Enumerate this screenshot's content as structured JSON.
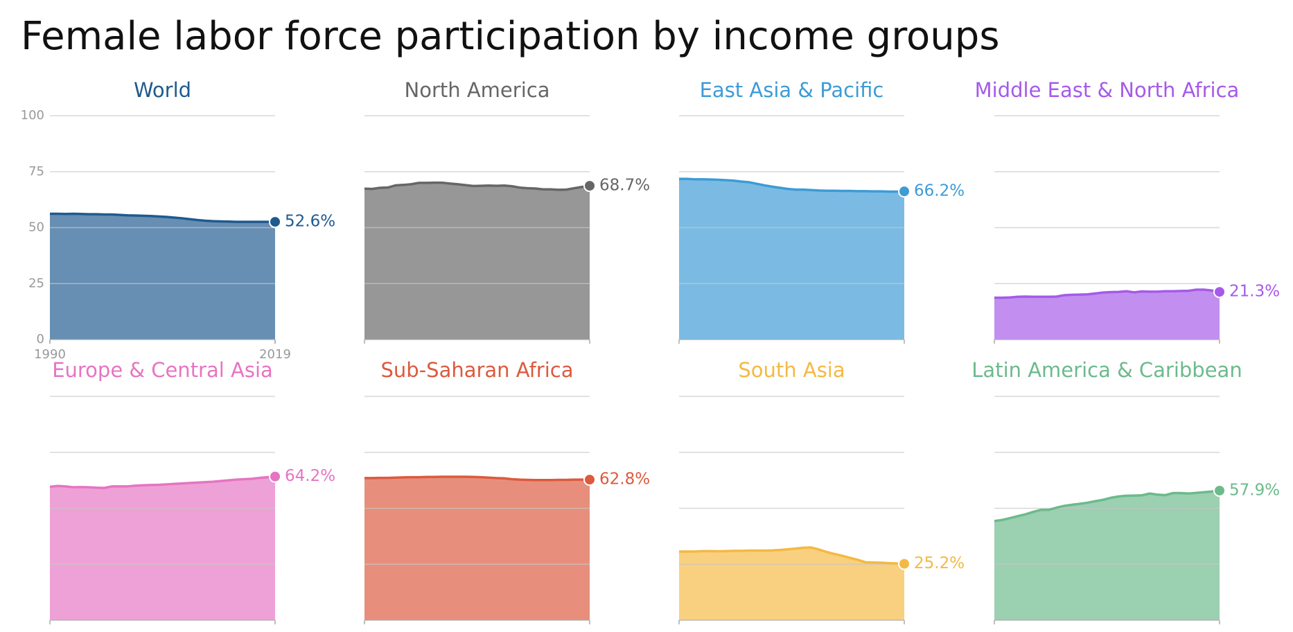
{
  "title": "Female labor force participation by income groups",
  "chart_data": [
    {
      "type": "area",
      "title": "World",
      "color": "#1f5a8f",
      "show_tick_labels": true,
      "x": [
        1990,
        1991,
        1992,
        1993,
        1994,
        1995,
        1996,
        1997,
        1998,
        1999,
        2000,
        2001,
        2002,
        2003,
        2004,
        2005,
        2006,
        2007,
        2008,
        2009,
        2010,
        2011,
        2012,
        2013,
        2014,
        2015,
        2016,
        2017,
        2018,
        2019
      ],
      "values": [
        56.2,
        56.2,
        56.1,
        56.2,
        56.1,
        56.0,
        56.0,
        55.9,
        55.9,
        55.7,
        55.5,
        55.4,
        55.3,
        55.2,
        55.0,
        54.8,
        54.5,
        54.2,
        53.8,
        53.4,
        53.1,
        52.9,
        52.8,
        52.7,
        52.6,
        52.6,
        52.6,
        52.6,
        52.6,
        52.6
      ],
      "value_labels": [
        null,
        null,
        null,
        null,
        null,
        null,
        null,
        null,
        null,
        null,
        null,
        null,
        null,
        null,
        null,
        null,
        null,
        null,
        null,
        null,
        null,
        null,
        null,
        null,
        null,
        null,
        null,
        null,
        null,
        "52.6%"
      ],
      "xlim": [
        1990,
        2019
      ],
      "xticks": [
        1990,
        2019
      ],
      "ylim": [
        0,
        100
      ],
      "yticks": [
        0,
        25,
        50,
        75,
        100
      ]
    },
    {
      "type": "area",
      "title": "North America",
      "color": "#666666",
      "x": [
        1990,
        1991,
        1992,
        1993,
        1994,
        1995,
        1996,
        1997,
        1998,
        1999,
        2000,
        2001,
        2002,
        2003,
        2004,
        2005,
        2006,
        2007,
        2008,
        2009,
        2010,
        2011,
        2012,
        2013,
        2014,
        2015,
        2016,
        2017,
        2018,
        2019
      ],
      "values": [
        67.4,
        67.3,
        67.8,
        67.9,
        68.9,
        69.1,
        69.4,
        70.0,
        70.0,
        70.1,
        70.1,
        69.7,
        69.4,
        69.0,
        68.6,
        68.7,
        68.8,
        68.7,
        68.8,
        68.5,
        67.9,
        67.6,
        67.5,
        67.1,
        67.1,
        66.9,
        67.0,
        67.6,
        68.2,
        68.7
      ],
      "value_labels": [
        null,
        null,
        null,
        null,
        null,
        null,
        null,
        null,
        null,
        null,
        null,
        null,
        null,
        null,
        null,
        null,
        null,
        null,
        null,
        null,
        null,
        null,
        null,
        null,
        null,
        null,
        null,
        null,
        null,
        "68.7%"
      ],
      "xlim": [
        1990,
        2019
      ],
      "ylim": [
        0,
        100
      ],
      "yticks": [
        0,
        25,
        50,
        75,
        100
      ]
    },
    {
      "type": "area",
      "title": "East Asia & Pacific",
      "color": "#3d9bd6",
      "x": [
        1990,
        1991,
        1992,
        1993,
        1994,
        1995,
        1996,
        1997,
        1998,
        1999,
        2000,
        2001,
        2002,
        2003,
        2004,
        2005,
        2006,
        2007,
        2008,
        2009,
        2010,
        2011,
        2012,
        2013,
        2014,
        2015,
        2016,
        2017,
        2018,
        2019
      ],
      "values": [
        71.8,
        71.8,
        71.6,
        71.6,
        71.5,
        71.4,
        71.2,
        71.0,
        70.6,
        70.3,
        69.6,
        68.9,
        68.3,
        67.8,
        67.3,
        67.0,
        67.0,
        66.8,
        66.6,
        66.5,
        66.5,
        66.4,
        66.4,
        66.3,
        66.3,
        66.2,
        66.2,
        66.1,
        66.1,
        66.2
      ],
      "value_labels": [
        null,
        null,
        null,
        null,
        null,
        null,
        null,
        null,
        null,
        null,
        null,
        null,
        null,
        null,
        null,
        null,
        null,
        null,
        null,
        null,
        null,
        null,
        null,
        null,
        null,
        null,
        null,
        null,
        null,
        "66.2%"
      ],
      "xlim": [
        1990,
        2019
      ],
      "ylim": [
        0,
        100
      ],
      "yticks": [
        0,
        25,
        50,
        75,
        100
      ]
    },
    {
      "type": "area",
      "title": "Middle East & North Africa",
      "color": "#a55ae9",
      "x": [
        1990,
        1991,
        1992,
        1993,
        1994,
        1995,
        1996,
        1997,
        1998,
        1999,
        2000,
        2001,
        2002,
        2003,
        2004,
        2005,
        2006,
        2007,
        2008,
        2009,
        2010,
        2011,
        2012,
        2013,
        2014,
        2015,
        2016,
        2017,
        2018,
        2019
      ],
      "values": [
        18.7,
        18.7,
        18.8,
        19.1,
        19.2,
        19.1,
        19.1,
        19.1,
        19.2,
        19.8,
        20.0,
        20.1,
        20.2,
        20.6,
        21.0,
        21.2,
        21.3,
        21.6,
        21.1,
        21.5,
        21.4,
        21.4,
        21.6,
        21.6,
        21.7,
        21.8,
        22.3,
        22.3,
        21.9,
        21.3
      ],
      "value_labels": [
        null,
        null,
        null,
        null,
        null,
        null,
        null,
        null,
        null,
        null,
        null,
        null,
        null,
        null,
        null,
        null,
        null,
        null,
        null,
        null,
        null,
        null,
        null,
        null,
        null,
        null,
        null,
        null,
        null,
        "21.3%"
      ],
      "xlim": [
        1990,
        2019
      ],
      "ylim": [
        0,
        100
      ],
      "yticks": [
        0,
        25,
        50,
        75,
        100
      ]
    },
    {
      "type": "area",
      "title": "Europe & Central Asia",
      "color": "#e674c3",
      "x": [
        1990,
        1991,
        1992,
        1993,
        1994,
        1995,
        1996,
        1997,
        1998,
        1999,
        2000,
        2001,
        2002,
        2003,
        2004,
        2005,
        2006,
        2007,
        2008,
        2009,
        2010,
        2011,
        2012,
        2013,
        2014,
        2015,
        2016,
        2017,
        2018,
        2019
      ],
      "values": [
        59.6,
        60.0,
        59.8,
        59.4,
        59.5,
        59.4,
        59.2,
        59.1,
        59.8,
        59.8,
        59.8,
        60.1,
        60.3,
        60.4,
        60.5,
        60.7,
        60.9,
        61.1,
        61.3,
        61.5,
        61.7,
        61.9,
        62.2,
        62.5,
        62.8,
        63.0,
        63.2,
        63.6,
        63.9,
        64.2
      ],
      "value_labels": [
        null,
        null,
        null,
        null,
        null,
        null,
        null,
        null,
        null,
        null,
        null,
        null,
        null,
        null,
        null,
        null,
        null,
        null,
        null,
        null,
        null,
        null,
        null,
        null,
        null,
        null,
        null,
        null,
        null,
        "64.2%"
      ],
      "xlim": [
        1990,
        2019
      ],
      "ylim": [
        0,
        100
      ],
      "yticks": [
        0,
        25,
        50,
        75,
        100
      ]
    },
    {
      "type": "area",
      "title": "Sub-Saharan Africa",
      "color": "#dc5a3e",
      "x": [
        1990,
        1991,
        1992,
        1993,
        1994,
        1995,
        1996,
        1997,
        1998,
        1999,
        2000,
        2001,
        2002,
        2003,
        2004,
        2005,
        2006,
        2007,
        2008,
        2009,
        2010,
        2011,
        2012,
        2013,
        2014,
        2015,
        2016,
        2017,
        2018,
        2019
      ],
      "values": [
        63.5,
        63.5,
        63.6,
        63.6,
        63.7,
        63.8,
        63.9,
        63.9,
        64.0,
        64.0,
        64.1,
        64.1,
        64.1,
        64.1,
        64.0,
        63.9,
        63.7,
        63.5,
        63.4,
        63.0,
        62.8,
        62.7,
        62.6,
        62.6,
        62.6,
        62.7,
        62.7,
        62.8,
        62.8,
        62.8
      ],
      "value_labels": [
        null,
        null,
        null,
        null,
        null,
        null,
        null,
        null,
        null,
        null,
        null,
        null,
        null,
        null,
        null,
        null,
        null,
        null,
        null,
        null,
        null,
        null,
        null,
        null,
        null,
        null,
        null,
        null,
        null,
        "62.8%"
      ],
      "xlim": [
        1990,
        2019
      ],
      "ylim": [
        0,
        100
      ],
      "yticks": [
        0,
        25,
        50,
        75,
        100
      ]
    },
    {
      "type": "area",
      "title": "South Asia",
      "color": "#f4b942",
      "x": [
        1990,
        1991,
        1992,
        1993,
        1994,
        1995,
        1996,
        1997,
        1998,
        1999,
        2000,
        2001,
        2002,
        2003,
        2004,
        2005,
        2006,
        2007,
        2008,
        2009,
        2010,
        2011,
        2012,
        2013,
        2014,
        2015,
        2016,
        2017,
        2018,
        2019
      ],
      "values": [
        30.7,
        30.7,
        30.7,
        30.9,
        30.9,
        30.8,
        30.9,
        31.0,
        31.0,
        31.1,
        31.1,
        31.1,
        31.2,
        31.4,
        31.7,
        32.0,
        32.4,
        32.5,
        31.6,
        30.5,
        29.6,
        28.8,
        27.9,
        27.0,
        25.9,
        25.8,
        25.7,
        25.5,
        25.4,
        25.2
      ],
      "value_labels": [
        null,
        null,
        null,
        null,
        null,
        null,
        null,
        null,
        null,
        null,
        null,
        null,
        null,
        null,
        null,
        null,
        null,
        null,
        null,
        null,
        null,
        null,
        null,
        null,
        null,
        null,
        null,
        null,
        null,
        "25.2%"
      ],
      "xlim": [
        1990,
        2019
      ],
      "ylim": [
        0,
        100
      ],
      "yticks": [
        0,
        25,
        50,
        75,
        100
      ]
    },
    {
      "type": "area",
      "title": "Latin America & Caribbean",
      "color": "#6cba8c",
      "x": [
        1990,
        1991,
        1992,
        1993,
        1994,
        1995,
        1996,
        1997,
        1998,
        1999,
        2000,
        2001,
        2002,
        2003,
        2004,
        2005,
        2006,
        2007,
        2008,
        2009,
        2010,
        2011,
        2012,
        2013,
        2014,
        2015,
        2016,
        2017,
        2018,
        2019
      ],
      "values": [
        44.3,
        44.8,
        45.6,
        46.5,
        47.3,
        48.4,
        49.3,
        49.3,
        50.3,
        51.1,
        51.6,
        52.0,
        52.5,
        53.2,
        53.8,
        54.7,
        55.3,
        55.6,
        55.7,
        55.8,
        56.6,
        56.1,
        55.9,
        56.8,
        56.8,
        56.6,
        56.9,
        57.2,
        57.5,
        57.9
      ],
      "value_labels": [
        null,
        null,
        null,
        null,
        null,
        null,
        null,
        null,
        null,
        null,
        null,
        null,
        null,
        null,
        null,
        null,
        null,
        null,
        null,
        null,
        null,
        null,
        null,
        null,
        null,
        null,
        null,
        null,
        null,
        "57.9%"
      ],
      "xlim": [
        1990,
        2019
      ],
      "ylim": [
        0,
        100
      ],
      "yticks": [
        0,
        25,
        50,
        75,
        100
      ]
    }
  ]
}
